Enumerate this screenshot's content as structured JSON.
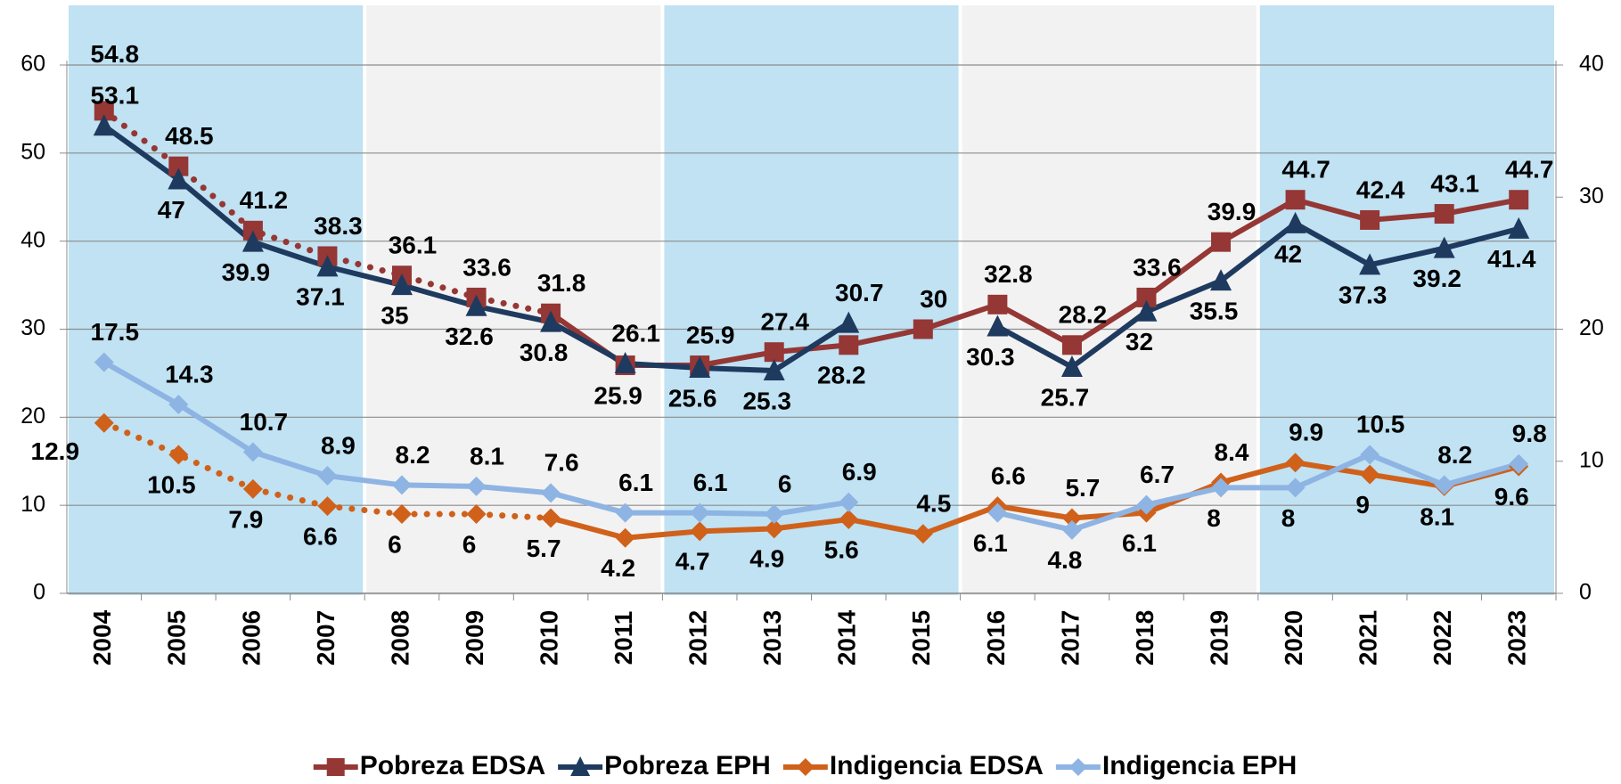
{
  "chart_data": {
    "type": "line",
    "categories": [
      "2004",
      "2005",
      "2006",
      "2007",
      "2008",
      "2009",
      "2010",
      "2011",
      "2012",
      "2013",
      "2014",
      "2015",
      "2016",
      "2017",
      "2018",
      "2019",
      "2020",
      "2021",
      "2022",
      "2023"
    ],
    "series": [
      {
        "name": "Pobreza EDSA",
        "color": "#953735",
        "marker": "square",
        "dotted_through": "2010",
        "values": [
          54.8,
          48.5,
          41.2,
          38.3,
          36.1,
          33.6,
          31.8,
          25.9,
          25.9,
          27.4,
          28.2,
          30.0,
          32.8,
          28.2,
          33.6,
          39.9,
          44.7,
          42.4,
          43.1,
          44.7
        ]
      },
      {
        "name": "Pobreza EPH",
        "color": "#1f3a5f",
        "marker": "triangle",
        "values": [
          53.1,
          47.0,
          39.9,
          37.1,
          35.0,
          32.6,
          30.8,
          26.1,
          25.6,
          25.3,
          30.7,
          null,
          30.3,
          25.7,
          32.0,
          35.5,
          42.0,
          37.3,
          39.2,
          41.4
        ]
      },
      {
        "name": "Indigencia EDSA",
        "color": "#d0611a",
        "marker": "diamond",
        "axis": "y2",
        "dotted_through": "2010",
        "values": [
          12.9,
          10.5,
          7.9,
          6.6,
          6.0,
          6.0,
          5.7,
          4.2,
          4.7,
          4.9,
          5.6,
          4.5,
          6.6,
          5.7,
          6.1,
          8.4,
          9.9,
          9.0,
          8.1,
          9.6
        ]
      },
      {
        "name": "Indigencia EPH",
        "color": "#8eb4e3",
        "marker": "diamond",
        "axis": "y2",
        "values": [
          17.5,
          14.3,
          10.7,
          8.9,
          8.2,
          8.1,
          7.6,
          6.1,
          6.1,
          6.0,
          6.9,
          null,
          6.1,
          4.8,
          6.7,
          8.0,
          8.0,
          10.5,
          8.2,
          9.8
        ]
      }
    ],
    "ylim": [
      0,
      60
    ],
    "yticks": [
      0,
      10,
      20,
      30,
      40,
      50,
      60
    ],
    "y2lim": [
      0,
      40
    ],
    "y2ticks": [
      0,
      10,
      20,
      30,
      40
    ],
    "grid": true,
    "legend": "bottom"
  }
}
